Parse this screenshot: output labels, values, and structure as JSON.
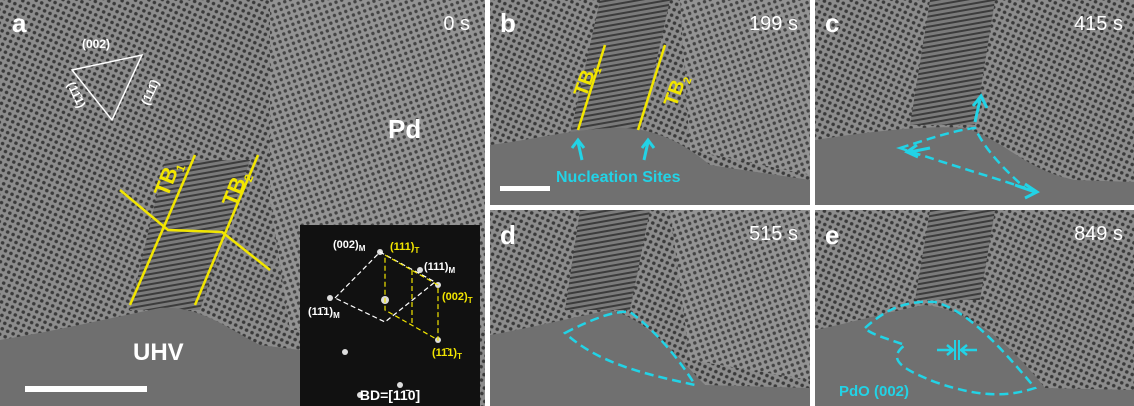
{
  "panels": [
    {
      "label": "a",
      "time": "0 s"
    },
    {
      "label": "b",
      "time": "199 s"
    },
    {
      "label": "c",
      "time": "415 s"
    },
    {
      "label": "d",
      "time": "515 s"
    },
    {
      "label": "e",
      "time": "849 s"
    }
  ],
  "panel_a": {
    "triangle": [
      "(002)",
      "(11̄1)",
      "(111̄)"
    ],
    "material": "Pd",
    "vacuum": "UHV",
    "twin_boundaries": [
      {
        "text": "TB",
        "sub": "1"
      },
      {
        "text": "TB",
        "sub": "2"
      }
    ],
    "fft": {
      "spots": [
        {
          "text": "(002)",
          "sub": "M"
        },
        {
          "text": "(111)",
          "sub": "T"
        },
        {
          "text": "(111)",
          "sub": "M"
        },
        {
          "text": "(002)",
          "sub": "T"
        },
        {
          "text": "(11̄1)",
          "sub": "M"
        },
        {
          "text": "(11̄1)",
          "sub": "T"
        }
      ],
      "zone_axis": "BD=[11̄0]"
    }
  },
  "panel_b": {
    "twin_boundaries": [
      {
        "text": "TB",
        "sub": "1"
      },
      {
        "text": "TB",
        "sub": "2"
      }
    ],
    "annotation": "Nucleation Sites"
  },
  "panel_e": {
    "annotation": "PdO (002)"
  }
}
